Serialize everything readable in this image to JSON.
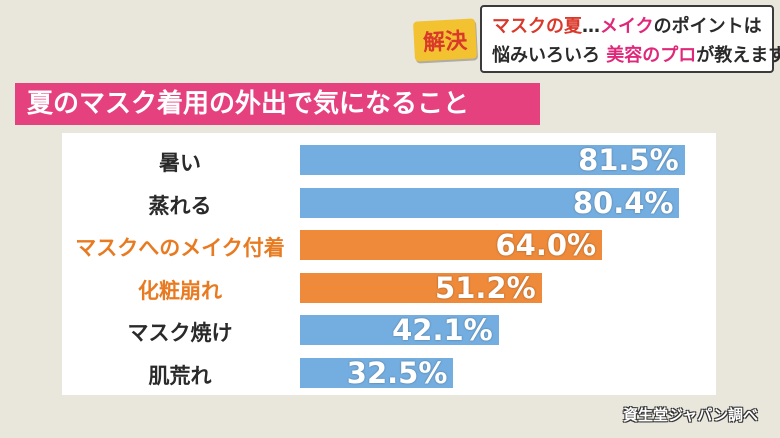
{
  "banner": {
    "badge": "解決",
    "line1": [
      {
        "text": "マスクの夏",
        "color": "red"
      },
      {
        "text": "…",
        "color": "dark"
      },
      {
        "text": "メイク",
        "color": "pink"
      },
      {
        "text": "のポイントは",
        "color": "dark"
      }
    ],
    "line2": [
      {
        "text": "悩みいろいろ ",
        "color": "dark"
      },
      {
        "text": "美容のプロ",
        "color": "pink"
      },
      {
        "text": "が教えます!",
        "color": "dark"
      }
    ]
  },
  "chart_data": {
    "type": "bar",
    "orientation": "horizontal",
    "title": "夏のマスク着用の外出で気になること",
    "categories": [
      "暑い",
      "蒸れる",
      "マスクへのメイク付着",
      "化粧崩れ",
      "マスク焼け",
      "肌荒れ"
    ],
    "values": [
      81.5,
      80.4,
      64.0,
      51.2,
      42.1,
      32.5
    ],
    "value_labels": [
      "81.5%",
      "80.4%",
      "64.0%",
      "51.2%",
      "42.1%",
      "32.5%"
    ],
    "bar_colors": [
      "#74aee0",
      "#74aee0",
      "#ee8a3a",
      "#ee8a3a",
      "#74aee0",
      "#74aee0"
    ],
    "label_colors": [
      "#2a2a2a",
      "#2a2a2a",
      "#e87b22",
      "#e87b22",
      "#2a2a2a",
      "#2a2a2a"
    ],
    "unit": "%",
    "source": "資生堂ジャパン調べ"
  }
}
